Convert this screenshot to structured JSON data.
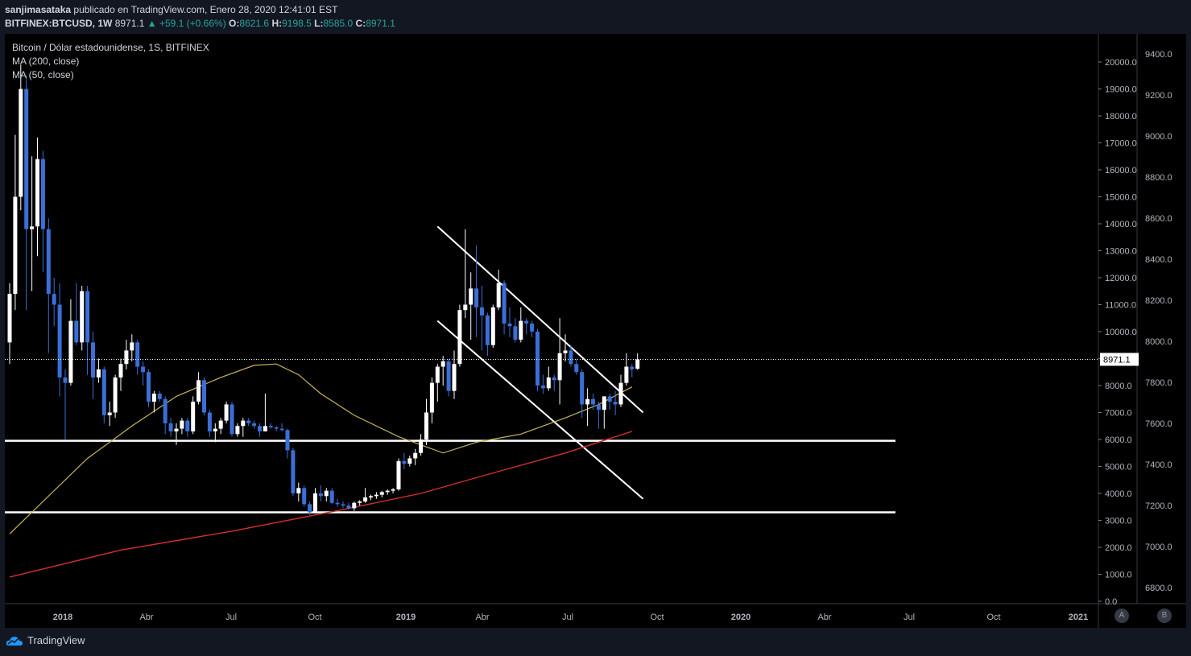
{
  "header": {
    "author": "sanjimasataka",
    "published_text": " publicado en TradingView.com, Enero 28, 2020 12:41:01 EST",
    "symbol": "BITFINEX:BTCUSD, 1W",
    "last": "8971.1",
    "change": "+59.1 (+0.66%)",
    "o_label": "O:",
    "o": "8621.6",
    "h_label": "H:",
    "h": "9198.5",
    "l_label": "L:",
    "l": "8585.0",
    "c_label": "C:",
    "c": "8971.1"
  },
  "legend": {
    "title": "Bitcoin / Dólar estadounidense, 1S, BITFINEX",
    "ma200": "MA (200, close)",
    "ma50": "MA (50, close)"
  },
  "price_label": "8971.1",
  "footer": {
    "brand": "TradingView",
    "btn_a": "A",
    "btn_b": "B"
  },
  "colors": {
    "bg": "#000000",
    "bull": "#ffffff",
    "bear": "#3a6fd8",
    "ma200": "#d32f2f",
    "ma50": "#c9b458",
    "lines": "#ffffff",
    "axis_text": "#b2b5be"
  },
  "chart_data": {
    "type": "candlestick",
    "symbol": "BITFINEX:BTCUSD",
    "interval": "1W",
    "title": "Bitcoin / Dólar estadounidense, 1S, BITFINEX",
    "y_axis_right": {
      "range": [
        0,
        20000
      ],
      "ticks": [
        "0.0",
        "1000.0",
        "2000.0",
        "3000.0",
        "4000.0",
        "5000.0",
        "6000.0",
        "7000.0",
        "8000.0",
        "9000.0",
        "10000.0",
        "11000.0",
        "12000.0",
        "13000.0",
        "14000.0",
        "15000.0",
        "16000.0",
        "17000.0",
        "18000.0",
        "19000.0",
        "20000.0"
      ]
    },
    "y_axis_outer": {
      "range": [
        6800,
        9400
      ],
      "ticks": [
        "6800.0",
        "7000.0",
        "7200.0",
        "7400.0",
        "7600.0",
        "7800.0",
        "8000.0",
        "8200.0",
        "8400.0",
        "8600.0",
        "8800.0",
        "9000.0",
        "9200.0",
        "9400.0"
      ]
    },
    "x_axis": {
      "ticks": [
        "2018",
        "Abr",
        "Jul",
        "Oct",
        "2019",
        "Abr",
        "Jul",
        "Oct",
        "2020",
        "Abr",
        "Jul",
        "Oct",
        "2021"
      ],
      "bold": [
        "2018",
        "2019",
        "2020",
        "2021"
      ]
    },
    "candles": [
      {
        "t": "2017-11-27",
        "o": 9600,
        "h": 11800,
        "l": 8800,
        "c": 11400
      },
      {
        "t": "2017-12-04",
        "o": 11400,
        "h": 17300,
        "l": 10800,
        "c": 15000
      },
      {
        "t": "2017-12-11",
        "o": 15000,
        "h": 19900,
        "l": 14500,
        "c": 19000
      },
      {
        "t": "2017-12-18",
        "o": 19000,
        "h": 19500,
        "l": 10800,
        "c": 13800
      },
      {
        "t": "2017-12-25",
        "o": 13800,
        "h": 16500,
        "l": 11500,
        "c": 13900
      },
      {
        "t": "2018-01-01",
        "o": 13900,
        "h": 17200,
        "l": 12800,
        "c": 16400
      },
      {
        "t": "2018-01-08",
        "o": 16400,
        "h": 16700,
        "l": 12200,
        "c": 13800
      },
      {
        "t": "2018-01-15",
        "o": 13800,
        "h": 14200,
        "l": 9200,
        "c": 11400
      },
      {
        "t": "2018-01-22",
        "o": 11400,
        "h": 12000,
        "l": 10200,
        "c": 11000
      },
      {
        "t": "2018-01-29",
        "o": 11000,
        "h": 11800,
        "l": 7600,
        "c": 8300
      },
      {
        "t": "2018-02-05",
        "o": 8300,
        "h": 8600,
        "l": 6000,
        "c": 8100
      },
      {
        "t": "2018-02-12",
        "o": 8100,
        "h": 11200,
        "l": 8000,
        "c": 10400
      },
      {
        "t": "2018-02-19",
        "o": 10400,
        "h": 11800,
        "l": 9500,
        "c": 9600
      },
      {
        "t": "2018-02-26",
        "o": 9600,
        "h": 11700,
        "l": 9300,
        "c": 11500
      },
      {
        "t": "2018-03-05",
        "o": 11500,
        "h": 11700,
        "l": 8400,
        "c": 9600
      },
      {
        "t": "2018-03-12",
        "o": 9600,
        "h": 10000,
        "l": 7500,
        "c": 8300
      },
      {
        "t": "2018-03-19",
        "o": 8300,
        "h": 9000,
        "l": 8100,
        "c": 8600
      },
      {
        "t": "2018-03-26",
        "o": 8600,
        "h": 8700,
        "l": 6600,
        "c": 6900
      },
      {
        "t": "2018-04-02",
        "o": 6900,
        "h": 7400,
        "l": 6500,
        "c": 7000
      },
      {
        "t": "2018-04-09",
        "o": 7000,
        "h": 8400,
        "l": 6800,
        "c": 8300
      },
      {
        "t": "2018-04-16",
        "o": 8300,
        "h": 9000,
        "l": 7800,
        "c": 8800
      },
      {
        "t": "2018-04-23",
        "o": 8800,
        "h": 9700,
        "l": 8600,
        "c": 9300
      },
      {
        "t": "2018-04-30",
        "o": 9300,
        "h": 9900,
        "l": 8900,
        "c": 9600
      },
      {
        "t": "2018-05-07",
        "o": 9600,
        "h": 9700,
        "l": 8400,
        "c": 8700
      },
      {
        "t": "2018-05-14",
        "o": 8700,
        "h": 8900,
        "l": 8000,
        "c": 8500
      },
      {
        "t": "2018-05-21",
        "o": 8500,
        "h": 8600,
        "l": 7200,
        "c": 7400
      },
      {
        "t": "2018-05-28",
        "o": 7400,
        "h": 7800,
        "l": 7000,
        "c": 7700
      },
      {
        "t": "2018-06-04",
        "o": 7700,
        "h": 7800,
        "l": 7400,
        "c": 7500
      },
      {
        "t": "2018-06-11",
        "o": 7500,
        "h": 7600,
        "l": 6200,
        "c": 6600
      },
      {
        "t": "2018-06-18",
        "o": 6600,
        "h": 6800,
        "l": 6100,
        "c": 6300
      },
      {
        "t": "2018-06-25",
        "o": 6300,
        "h": 6600,
        "l": 5800,
        "c": 6400
      },
      {
        "t": "2018-07-02",
        "o": 6400,
        "h": 6800,
        "l": 6200,
        "c": 6700
      },
      {
        "t": "2018-07-09",
        "o": 6700,
        "h": 6800,
        "l": 6100,
        "c": 6300
      },
      {
        "t": "2018-07-16",
        "o": 6300,
        "h": 7600,
        "l": 6200,
        "c": 7400
      },
      {
        "t": "2018-07-23",
        "o": 7400,
        "h": 8500,
        "l": 7300,
        "c": 8200
      },
      {
        "t": "2018-07-30",
        "o": 8200,
        "h": 8300,
        "l": 6900,
        "c": 7000
      },
      {
        "t": "2018-08-06",
        "o": 7000,
        "h": 7100,
        "l": 6100,
        "c": 6300
      },
      {
        "t": "2018-08-13",
        "o": 6300,
        "h": 6600,
        "l": 5900,
        "c": 6400
      },
      {
        "t": "2018-08-20",
        "o": 6400,
        "h": 6800,
        "l": 6200,
        "c": 6700
      },
      {
        "t": "2018-08-27",
        "o": 6700,
        "h": 7400,
        "l": 6600,
        "c": 7300
      },
      {
        "t": "2018-09-03",
        "o": 7300,
        "h": 7400,
        "l": 6100,
        "c": 6200
      },
      {
        "t": "2018-09-10",
        "o": 6200,
        "h": 6600,
        "l": 6100,
        "c": 6500
      },
      {
        "t": "2018-09-17",
        "o": 6500,
        "h": 6800,
        "l": 6100,
        "c": 6700
      },
      {
        "t": "2018-09-24",
        "o": 6700,
        "h": 6800,
        "l": 6500,
        "c": 6600
      },
      {
        "t": "2018-10-01",
        "o": 6600,
        "h": 6700,
        "l": 6400,
        "c": 6500
      },
      {
        "t": "2018-10-08",
        "o": 6500,
        "h": 6600,
        "l": 6100,
        "c": 6300
      },
      {
        "t": "2018-10-15",
        "o": 6300,
        "h": 7700,
        "l": 6300,
        "c": 6500
      },
      {
        "t": "2018-10-22",
        "o": 6500,
        "h": 6600,
        "l": 6400,
        "c": 6450
      },
      {
        "t": "2018-10-29",
        "o": 6450,
        "h": 6500,
        "l": 6300,
        "c": 6400
      },
      {
        "t": "2018-11-05",
        "o": 6400,
        "h": 6600,
        "l": 6300,
        "c": 6350
      },
      {
        "t": "2018-11-12",
        "o": 6350,
        "h": 6400,
        "l": 5300,
        "c": 5600
      },
      {
        "t": "2018-11-19",
        "o": 5600,
        "h": 5700,
        "l": 3900,
        "c": 4000
      },
      {
        "t": "2018-11-26",
        "o": 4000,
        "h": 4400,
        "l": 3700,
        "c": 4200
      },
      {
        "t": "2018-12-03",
        "o": 4200,
        "h": 4300,
        "l": 3500,
        "c": 3600
      },
      {
        "t": "2018-12-10",
        "o": 3600,
        "h": 3700,
        "l": 3200,
        "c": 3300
      },
      {
        "t": "2018-12-17",
        "o": 3300,
        "h": 4200,
        "l": 3250,
        "c": 4000
      },
      {
        "t": "2018-12-24",
        "o": 4000,
        "h": 4300,
        "l": 3700,
        "c": 3900
      },
      {
        "t": "2018-12-31",
        "o": 3900,
        "h": 4200,
        "l": 3700,
        "c": 4100
      },
      {
        "t": "2019-01-07",
        "o": 4100,
        "h": 4200,
        "l": 3600,
        "c": 3650
      },
      {
        "t": "2019-01-14",
        "o": 3650,
        "h": 3800,
        "l": 3500,
        "c": 3600
      },
      {
        "t": "2019-01-21",
        "o": 3600,
        "h": 3700,
        "l": 3450,
        "c": 3550
      },
      {
        "t": "2019-01-28",
        "o": 3550,
        "h": 3650,
        "l": 3400,
        "c": 3450
      },
      {
        "t": "2019-02-04",
        "o": 3450,
        "h": 3700,
        "l": 3350,
        "c": 3650
      },
      {
        "t": "2019-02-11",
        "o": 3650,
        "h": 3750,
        "l": 3550,
        "c": 3700
      },
      {
        "t": "2019-02-18",
        "o": 3700,
        "h": 4200,
        "l": 3650,
        "c": 3850
      },
      {
        "t": "2019-02-25",
        "o": 3850,
        "h": 3950,
        "l": 3750,
        "c": 3900
      },
      {
        "t": "2019-03-04",
        "o": 3900,
        "h": 4050,
        "l": 3800,
        "c": 3950
      },
      {
        "t": "2019-03-11",
        "o": 3950,
        "h": 4100,
        "l": 3850,
        "c": 4050
      },
      {
        "t": "2019-03-18",
        "o": 4050,
        "h": 4150,
        "l": 3950,
        "c": 4100
      },
      {
        "t": "2019-03-25",
        "o": 4100,
        "h": 4200,
        "l": 4000,
        "c": 4150
      },
      {
        "t": "2019-04-01",
        "o": 4150,
        "h": 5300,
        "l": 4100,
        "c": 5200
      },
      {
        "t": "2019-04-08",
        "o": 5200,
        "h": 5500,
        "l": 4900,
        "c": 5100
      },
      {
        "t": "2019-04-15",
        "o": 5100,
        "h": 5400,
        "l": 5000,
        "c": 5300
      },
      {
        "t": "2019-04-22",
        "o": 5300,
        "h": 5650,
        "l": 5050,
        "c": 5500
      },
      {
        "t": "2019-04-29",
        "o": 5500,
        "h": 6200,
        "l": 5400,
        "c": 6000
      },
      {
        "t": "2019-05-06",
        "o": 6000,
        "h": 7500,
        "l": 5800,
        "c": 7000
      },
      {
        "t": "2019-05-13",
        "o": 7000,
        "h": 8300,
        "l": 6600,
        "c": 8100
      },
      {
        "t": "2019-05-20",
        "o": 8100,
        "h": 8800,
        "l": 7400,
        "c": 8700
      },
      {
        "t": "2019-05-27",
        "o": 8700,
        "h": 9100,
        "l": 8000,
        "c": 8900
      },
      {
        "t": "2019-06-03",
        "o": 8900,
        "h": 9000,
        "l": 7600,
        "c": 7800
      },
      {
        "t": "2019-06-10",
        "o": 7800,
        "h": 9300,
        "l": 7500,
        "c": 8800
      },
      {
        "t": "2019-06-17",
        "o": 8800,
        "h": 11000,
        "l": 8700,
        "c": 10800
      },
      {
        "t": "2019-06-24",
        "o": 10800,
        "h": 13800,
        "l": 10500,
        "c": 11000
      },
      {
        "t": "2019-07-01",
        "o": 11000,
        "h": 12200,
        "l": 9700,
        "c": 11600
      },
      {
        "t": "2019-07-08",
        "o": 11600,
        "h": 13200,
        "l": 9800,
        "c": 10900
      },
      {
        "t": "2019-07-15",
        "o": 10900,
        "h": 11700,
        "l": 9300,
        "c": 10600
      },
      {
        "t": "2019-07-22",
        "o": 10600,
        "h": 10700,
        "l": 9100,
        "c": 9500
      },
      {
        "t": "2019-07-29",
        "o": 9500,
        "h": 11000,
        "l": 9400,
        "c": 10900
      },
      {
        "t": "2019-08-05",
        "o": 10900,
        "h": 12300,
        "l": 10800,
        "c": 11800
      },
      {
        "t": "2019-08-12",
        "o": 11800,
        "h": 11900,
        "l": 9900,
        "c": 10300
      },
      {
        "t": "2019-08-19",
        "o": 10300,
        "h": 10900,
        "l": 9800,
        "c": 10200
      },
      {
        "t": "2019-08-26",
        "o": 10200,
        "h": 10500,
        "l": 9600,
        "c": 9700
      },
      {
        "t": "2019-09-02",
        "o": 9700,
        "h": 10900,
        "l": 9600,
        "c": 10400
      },
      {
        "t": "2019-09-09",
        "o": 10400,
        "h": 10500,
        "l": 9900,
        "c": 10300
      },
      {
        "t": "2019-09-16",
        "o": 10300,
        "h": 10400,
        "l": 9800,
        "c": 10000
      },
      {
        "t": "2019-09-23",
        "o": 10000,
        "h": 10100,
        "l": 7800,
        "c": 8000
      },
      {
        "t": "2019-09-30",
        "o": 8000,
        "h": 8400,
        "l": 7700,
        "c": 7900
      },
      {
        "t": "2019-10-07",
        "o": 7900,
        "h": 8700,
        "l": 7800,
        "c": 8300
      },
      {
        "t": "2019-10-14",
        "o": 8300,
        "h": 8400,
        "l": 7800,
        "c": 8200
      },
      {
        "t": "2019-10-21",
        "o": 8200,
        "h": 10500,
        "l": 7300,
        "c": 9200
      },
      {
        "t": "2019-10-28",
        "o": 9200,
        "h": 9900,
        "l": 8900,
        "c": 9300
      },
      {
        "t": "2019-11-04",
        "o": 9300,
        "h": 9500,
        "l": 8700,
        "c": 8800
      },
      {
        "t": "2019-11-11",
        "o": 8800,
        "h": 9000,
        "l": 8400,
        "c": 8500
      },
      {
        "t": "2019-11-18",
        "o": 8500,
        "h": 8600,
        "l": 6800,
        "c": 7300
      },
      {
        "t": "2019-11-25",
        "o": 7300,
        "h": 7900,
        "l": 6500,
        "c": 7500
      },
      {
        "t": "2019-12-02",
        "o": 7500,
        "h": 7700,
        "l": 7100,
        "c": 7300
      },
      {
        "t": "2019-12-09",
        "o": 7300,
        "h": 7400,
        "l": 6400,
        "c": 7100
      },
      {
        "t": "2019-12-16",
        "o": 7100,
        "h": 7500,
        "l": 6400,
        "c": 7600
      },
      {
        "t": "2019-12-23",
        "o": 7600,
        "h": 7700,
        "l": 7100,
        "c": 7400
      },
      {
        "t": "2019-12-30",
        "o": 7400,
        "h": 7800,
        "l": 6900,
        "c": 7300
      },
      {
        "t": "2020-01-06",
        "o": 7300,
        "h": 8400,
        "l": 7200,
        "c": 8100
      },
      {
        "t": "2020-01-13",
        "o": 8100,
        "h": 9200,
        "l": 8000,
        "c": 8700
      },
      {
        "t": "2020-01-20",
        "o": 8700,
        "h": 8800,
        "l": 8300,
        "c": 8600
      },
      {
        "t": "2020-01-27",
        "o": 8621.6,
        "h": 9198.5,
        "l": 8585.0,
        "c": 8971.1
      }
    ],
    "ma50": [
      [
        0,
        2500
      ],
      [
        6,
        3700
      ],
      [
        14,
        5300
      ],
      [
        22,
        6500
      ],
      [
        30,
        7600
      ],
      [
        38,
        8300
      ],
      [
        44,
        8750
      ],
      [
        48,
        8800
      ],
      [
        52,
        8400
      ],
      [
        56,
        7700
      ],
      [
        62,
        6900
      ],
      [
        70,
        6100
      ],
      [
        78,
        5500
      ],
      [
        84,
        5900
      ],
      [
        92,
        6200
      ],
      [
        100,
        6800
      ],
      [
        106,
        7300
      ],
      [
        112,
        7950
      ]
    ],
    "ma200": [
      [
        0,
        900
      ],
      [
        20,
        1900
      ],
      [
        40,
        2600
      ],
      [
        60,
        3400
      ],
      [
        74,
        4000
      ],
      [
        86,
        4700
      ],
      [
        100,
        5500
      ],
      [
        112,
        6300
      ]
    ],
    "support_levels": [
      5950,
      3300
    ],
    "channel_upper": [
      [
        77,
        13900
      ],
      [
        114,
        7000
      ]
    ],
    "channel_lower": [
      [
        77,
        10400
      ],
      [
        114,
        3800
      ]
    ],
    "last_price": 8971.1
  }
}
